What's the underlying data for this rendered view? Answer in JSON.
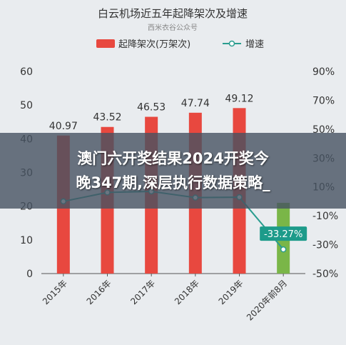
{
  "chart_data": {
    "type": "bar",
    "title": "白云机场近五年起降架次及增速",
    "subtitle": "西米衣谷公众号",
    "categories": [
      "2015年",
      "2016年",
      "2017年",
      "2018年",
      "2019年",
      "2020年前8月"
    ],
    "series": [
      {
        "name": "起降架次(万架次)",
        "type": "bar",
        "axis": "left",
        "values": [
          40.97,
          43.52,
          46.53,
          47.74,
          49.12,
          21
        ],
        "labels": [
          "40.97",
          "43.52",
          "46.53",
          "47.74",
          "49.12",
          ""
        ]
      },
      {
        "name": "增速",
        "type": "line",
        "axis": "right",
        "values": [
          0,
          6.2,
          6.9,
          2.6,
          2.9,
          -33.27
        ],
        "labels": [
          "",
          "",
          "",
          "",
          "",
          "-33.27%"
        ]
      }
    ],
    "y_left": {
      "min": 0,
      "max": 60,
      "ticks": [
        "0",
        "10",
        "20",
        "30",
        "40",
        "50",
        "60"
      ]
    },
    "y_right": {
      "min": -50,
      "max": 90,
      "ticks": [
        "-50%",
        "-30%",
        "-10%",
        "10%",
        "30%",
        "50%",
        "70%",
        "90%"
      ]
    },
    "grid": false,
    "legend": "top-center",
    "colors": {
      "bar": "#e8483f",
      "bar_last": "#7ab648",
      "line": "#2a9d8f",
      "label_box": "#1d9b8a"
    }
  },
  "overlay": {
    "line1": "澳门六开奖结果2024开奖今",
    "line2": "晚347期,深层执行数据策略_"
  }
}
